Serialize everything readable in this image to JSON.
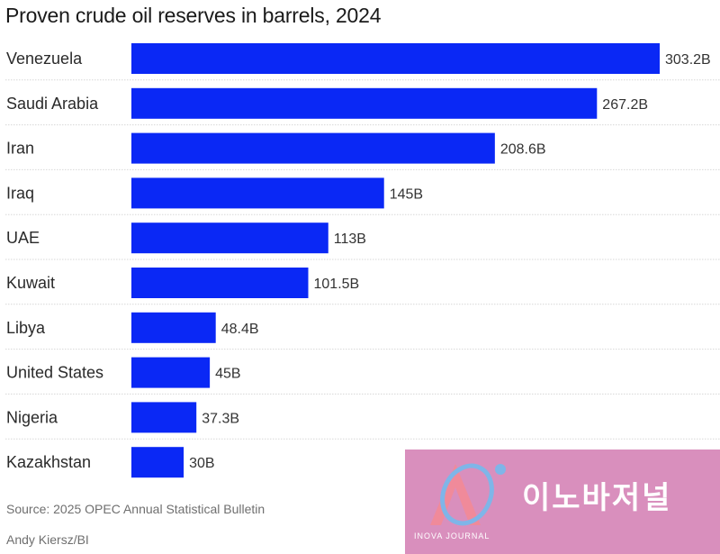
{
  "chart_data": {
    "type": "bar",
    "orientation": "horizontal",
    "title": "Proven crude oil reserves in barrels, 2024",
    "categories": [
      "Venezuela",
      "Saudi Arabia",
      "Iran",
      "Iraq",
      "UAE",
      "Kuwait",
      "Libya",
      "United States",
      "Nigeria",
      "Kazakhstan"
    ],
    "values": [
      303.2,
      267.2,
      208.6,
      145,
      113,
      101.5,
      48.4,
      45,
      37.3,
      30
    ],
    "value_labels": [
      "303.2B",
      "267.2B",
      "208.6B",
      "145B",
      "113B",
      "101.5B",
      "48.4B",
      "45B",
      "37.3B",
      "30B"
    ],
    "unit": "billion barrels",
    "xlim": [
      0,
      303.2
    ],
    "bar_color": "#0a28f5",
    "grid": false,
    "row_separators": true
  },
  "footer": {
    "source": "Source: 2025 OPEC Annual Statistical Bulletin",
    "credit": "Andy Kiersz/BI"
  },
  "watermark": {
    "text": "이노바저널",
    "sub": "INOVA JOURNAL",
    "color": "#d98fbd"
  }
}
